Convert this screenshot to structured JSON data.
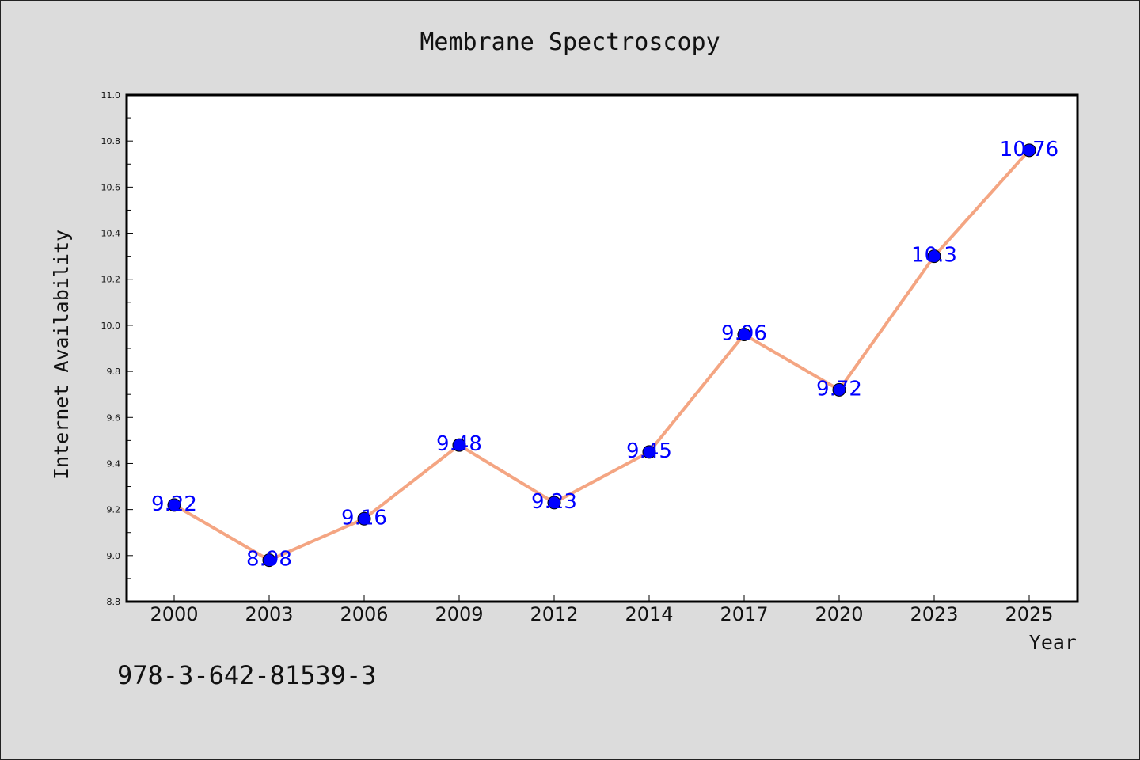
{
  "chart_data": {
    "type": "line",
    "title": "Membrane Spectroscopy",
    "xlabel": "Year",
    "ylabel": "Internet Availability",
    "categories": [
      "2000",
      "2003",
      "2006",
      "2009",
      "2012",
      "2014",
      "2017",
      "2020",
      "2023",
      "2025"
    ],
    "values": [
      9.22,
      8.98,
      9.16,
      9.48,
      9.23,
      9.45,
      9.96,
      9.72,
      10.3,
      10.76
    ],
    "data_labels": [
      "9.22",
      "8.98",
      "9.16",
      "9.48",
      "9.23",
      "9.45",
      "9.96",
      "9.72",
      "10.3",
      "10.76"
    ],
    "ylim": [
      8.8,
      11.0
    ],
    "yticks": [
      "8.8",
      "9.0",
      "9.2",
      "9.4",
      "9.6",
      "9.8",
      "10.0",
      "10.2",
      "10.4",
      "10.6",
      "10.8",
      "11.0"
    ],
    "grid": false,
    "line_color": "#f4a582",
    "marker_color": "#0000ff",
    "label_color": "#0000ff"
  },
  "footer": {
    "isbn": "978-3-642-81539-3"
  }
}
